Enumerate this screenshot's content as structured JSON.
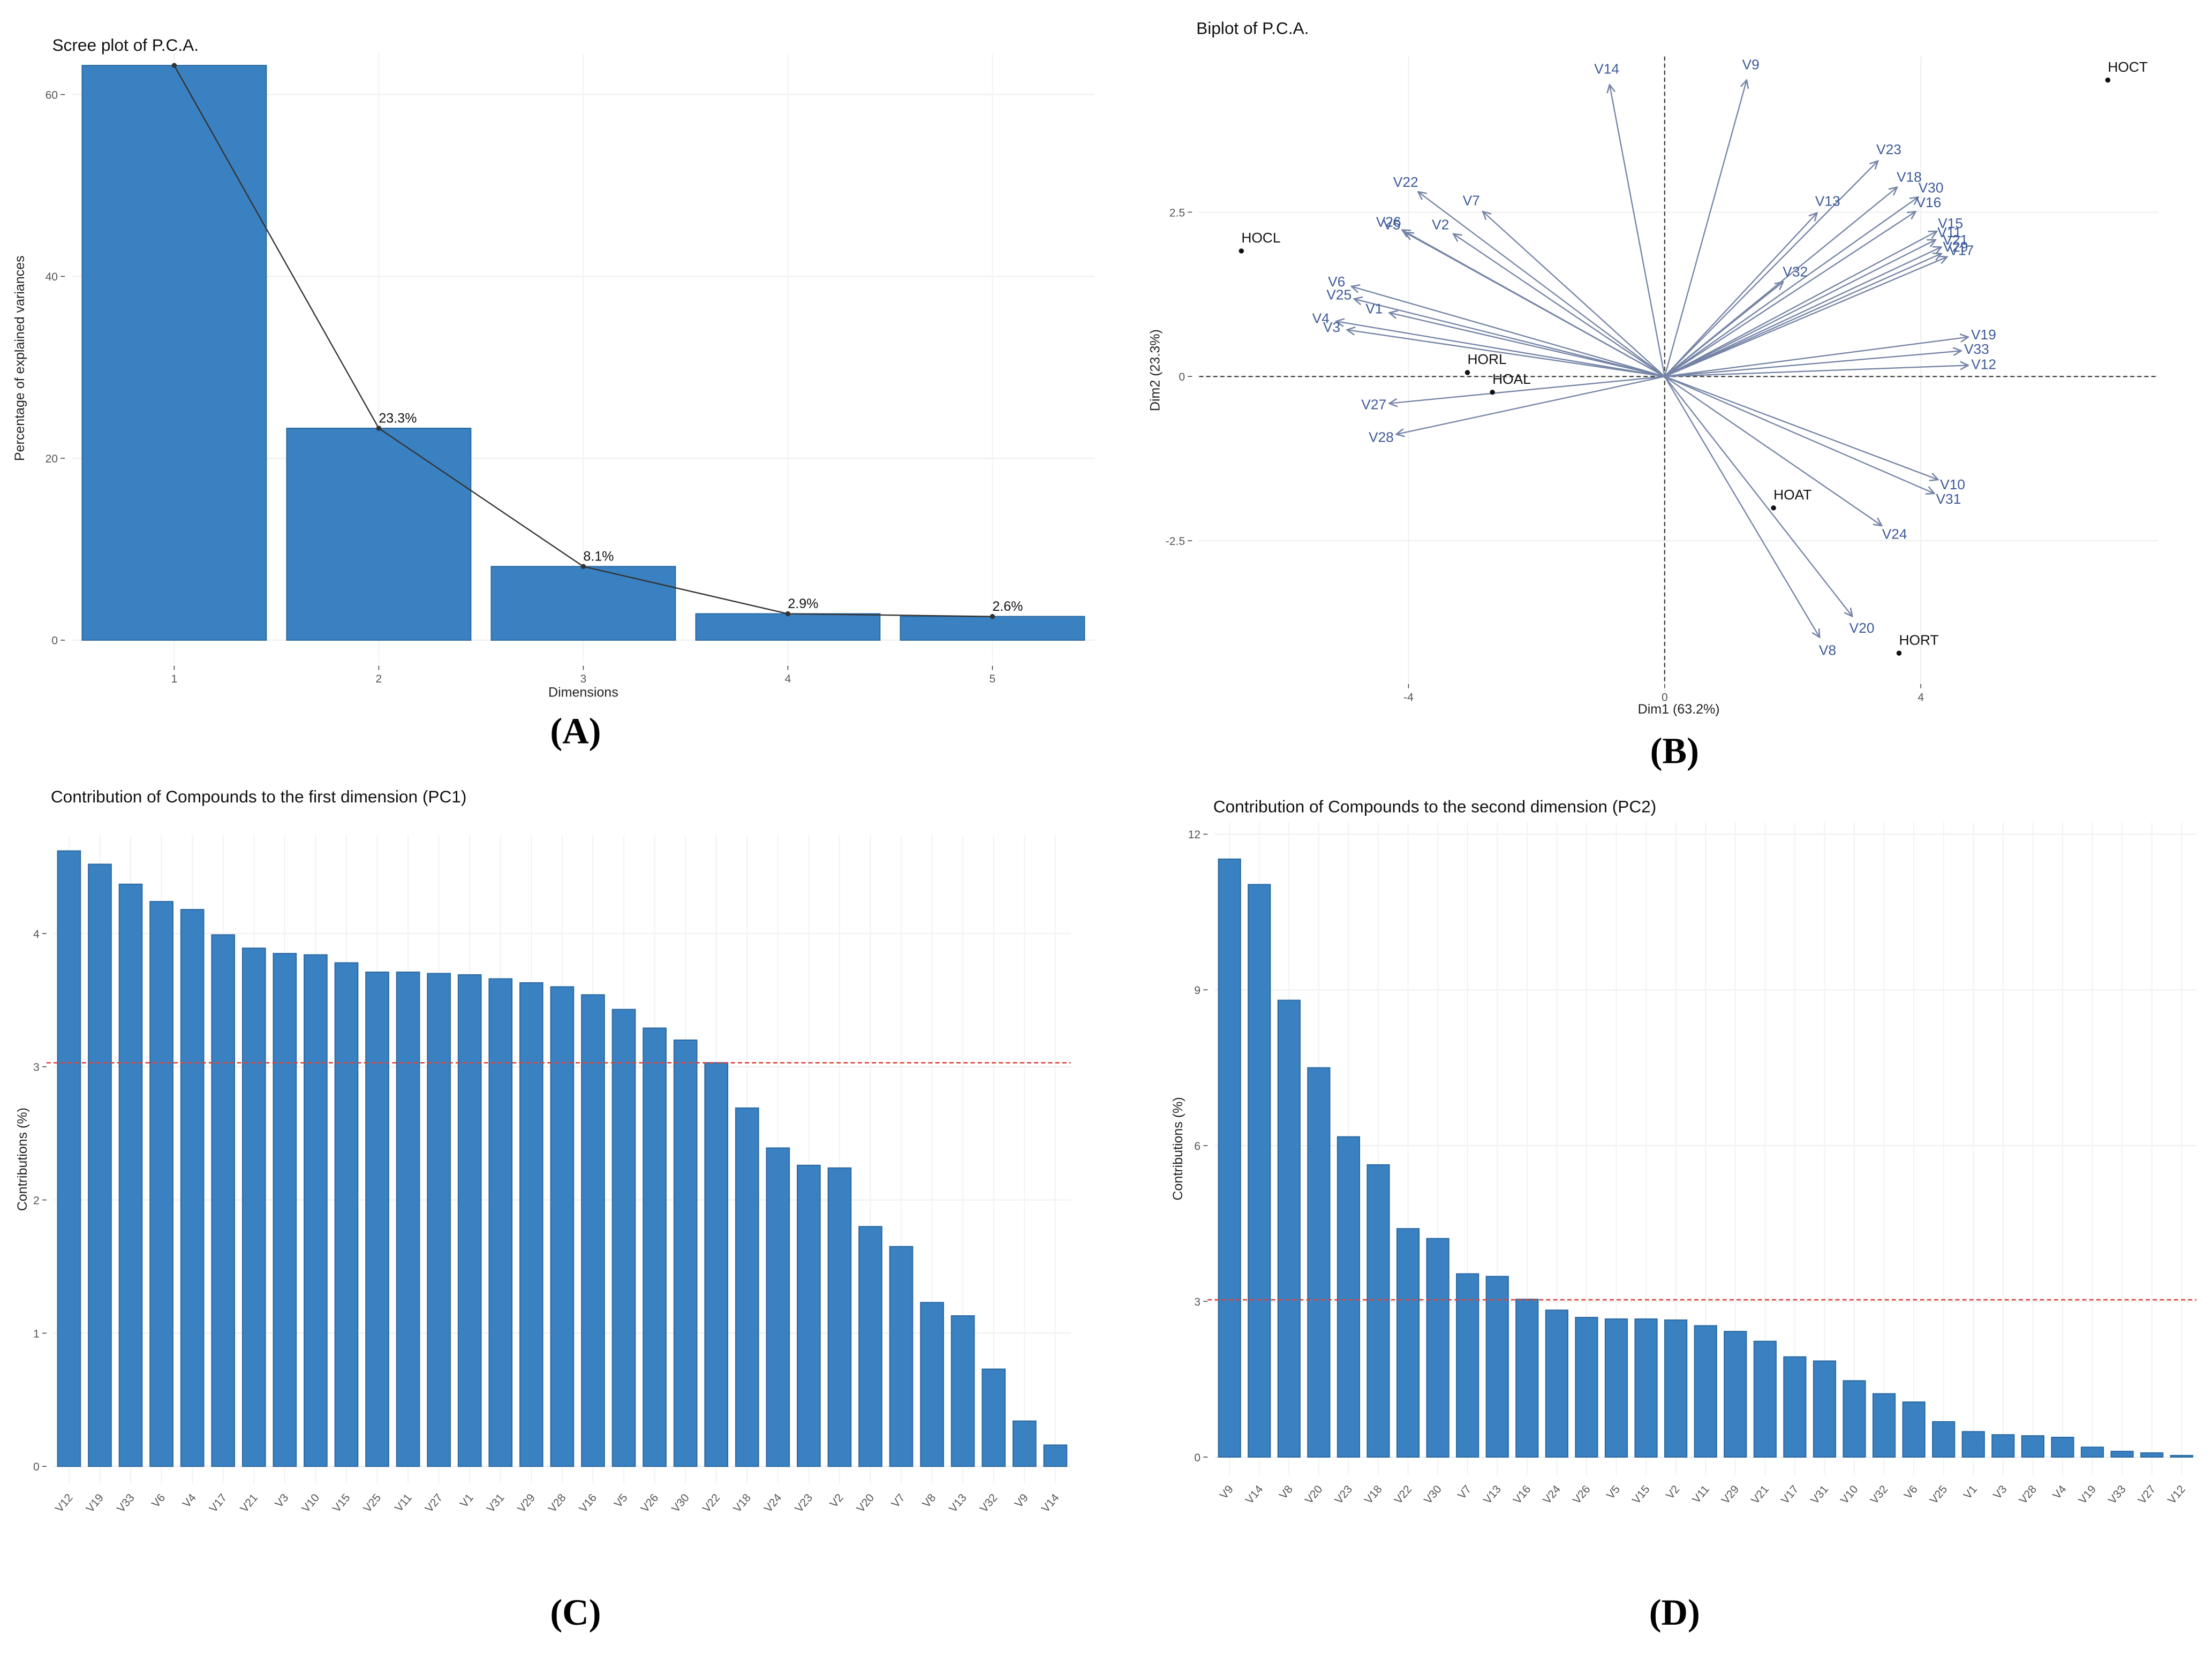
{
  "chart_data": [
    {
      "type": "bar",
      "title": "Scree plot of P.C.A.",
      "caption": "(A)",
      "xlabel": "Dimensions",
      "ylabel": "Percentage of explained variances",
      "categories": [
        "1",
        "2",
        "3",
        "4",
        "5"
      ],
      "values": [
        63.2,
        23.3,
        8.1,
        2.9,
        2.6
      ],
      "value_labels": [
        null,
        "23.3%",
        "8.1%",
        "2.9%",
        "2.6%"
      ],
      "color": "#3a81c1",
      "line_color": "#333333",
      "line_overlay": true,
      "ylim": [
        -2.5,
        64.5
      ],
      "yticks": [
        0,
        20,
        40,
        60
      ],
      "grid": true
    },
    {
      "type": "biplot",
      "title": "Biplot of P.C.A.",
      "caption": "(B)",
      "xlabel": "Dim1 (63.2%)",
      "ylabel": "Dim2 (23.3%)",
      "xlim": [
        -7.27,
        7.71
      ],
      "ylim": [
        -4.68,
        4.87
      ],
      "xticks": [
        -4,
        0,
        4
      ],
      "yticks": [
        -2.5,
        0,
        2.5
      ],
      "grid": true,
      "points": {
        "color": "#111111",
        "labels": [
          "HOCT",
          "HOCL",
          "HORL",
          "HOAL",
          "HOAT",
          "HORT"
        ],
        "x": [
          6.92,
          -6.61,
          -3.08,
          -2.69,
          1.7,
          3.66
        ],
        "y": [
          4.51,
          1.91,
          0.06,
          -0.24,
          -2.0,
          -4.21
        ]
      },
      "vectors": {
        "color": "#7584a6",
        "label_color": "#3d5a99",
        "labels": [
          "V14",
          "V9",
          "V23",
          "V18",
          "V30",
          "V13",
          "V16",
          "V15",
          "V11",
          "V21",
          "V29",
          "V17",
          "V32",
          "V19",
          "V33",
          "V12",
          "V10",
          "V31",
          "V24",
          "V20",
          "V8",
          "V22",
          "V7",
          "V26",
          "V2",
          "V5",
          "V6",
          "V25",
          "V1",
          "V4",
          "V3",
          "V27",
          "V28"
        ],
        "x": [
          -0.86,
          1.28,
          3.33,
          3.63,
          3.96,
          2.38,
          3.92,
          4.25,
          4.23,
          4.32,
          4.32,
          4.41,
          1.85,
          4.74,
          4.63,
          4.74,
          4.27,
          4.21,
          3.39,
          2.93,
          2.42,
          -3.85,
          -2.84,
          -4.1,
          -3.3,
          -4.05,
          -4.89,
          -4.85,
          -4.3,
          -5.13,
          -4.96,
          -4.3,
          -4.19
        ],
        "y": [
          4.44,
          4.51,
          3.28,
          2.88,
          2.73,
          2.49,
          2.51,
          2.21,
          2.08,
          1.97,
          1.87,
          1.82,
          1.44,
          0.6,
          0.39,
          0.17,
          -1.57,
          -1.78,
          -2.27,
          -3.65,
          -3.97,
          2.81,
          2.51,
          2.23,
          2.17,
          2.19,
          1.37,
          1.18,
          0.97,
          0.84,
          0.71,
          -0.41,
          -0.88
        ]
      }
    },
    {
      "type": "bar",
      "title": "Contribution of Compounds to the first dimension (PC1)",
      "caption": "(C)",
      "ylabel": "Contributions (%)",
      "categories": [
        "V12",
        "V19",
        "V33",
        "V6",
        "V4",
        "V17",
        "V21",
        "V3",
        "V10",
        "V15",
        "V25",
        "V11",
        "V27",
        "V1",
        "V31",
        "V29",
        "V28",
        "V16",
        "V5",
        "V26",
        "V30",
        "V22",
        "V18",
        "V24",
        "V23",
        "V2",
        "V20",
        "V7",
        "V8",
        "V13",
        "V32",
        "V9",
        "V14"
      ],
      "values": [
        4.62,
        4.52,
        4.37,
        4.24,
        4.18,
        3.99,
        3.89,
        3.85,
        3.84,
        3.78,
        3.71,
        3.71,
        3.7,
        3.69,
        3.66,
        3.63,
        3.6,
        3.54,
        3.43,
        3.29,
        3.2,
        3.03,
        2.69,
        2.39,
        2.26,
        2.24,
        1.8,
        1.65,
        1.23,
        1.13,
        0.73,
        0.34,
        0.16
      ],
      "color": "#3a81c1",
      "reference": 3.03,
      "reference_color": "#d9453d",
      "ylim": [
        -0.13,
        4.74
      ],
      "yticks": [
        0,
        1,
        2,
        3,
        4
      ],
      "grid": true
    },
    {
      "type": "bar",
      "title": "Contribution of Compounds to the second dimension (PC2)",
      "caption": "(D)",
      "ylabel": "Contributions (%)",
      "categories": [
        "V9",
        "V14",
        "V8",
        "V20",
        "V23",
        "V18",
        "V22",
        "V30",
        "V7",
        "V13",
        "V16",
        "V24",
        "V26",
        "V5",
        "V15",
        "V2",
        "V11",
        "V29",
        "V21",
        "V17",
        "V31",
        "V10",
        "V32",
        "V6",
        "V25",
        "V1",
        "V3",
        "V28",
        "V4",
        "V19",
        "V33",
        "V27",
        "V12"
      ],
      "values": [
        11.52,
        11.03,
        8.8,
        7.5,
        6.17,
        5.63,
        4.4,
        4.21,
        3.53,
        3.48,
        3.04,
        2.83,
        2.69,
        2.66,
        2.66,
        2.64,
        2.53,
        2.42,
        2.23,
        1.93,
        1.85,
        1.47,
        1.22,
        1.06,
        0.68,
        0.49,
        0.43,
        0.41,
        0.38,
        0.19,
        0.11,
        0.08,
        0.03
      ],
      "color": "#3a81c1",
      "reference": 3.03,
      "reference_color": "#d9453d",
      "ylim": [
        -0.35,
        12.23
      ],
      "yticks": [
        0,
        3,
        6,
        9,
        12
      ],
      "grid": true
    }
  ]
}
